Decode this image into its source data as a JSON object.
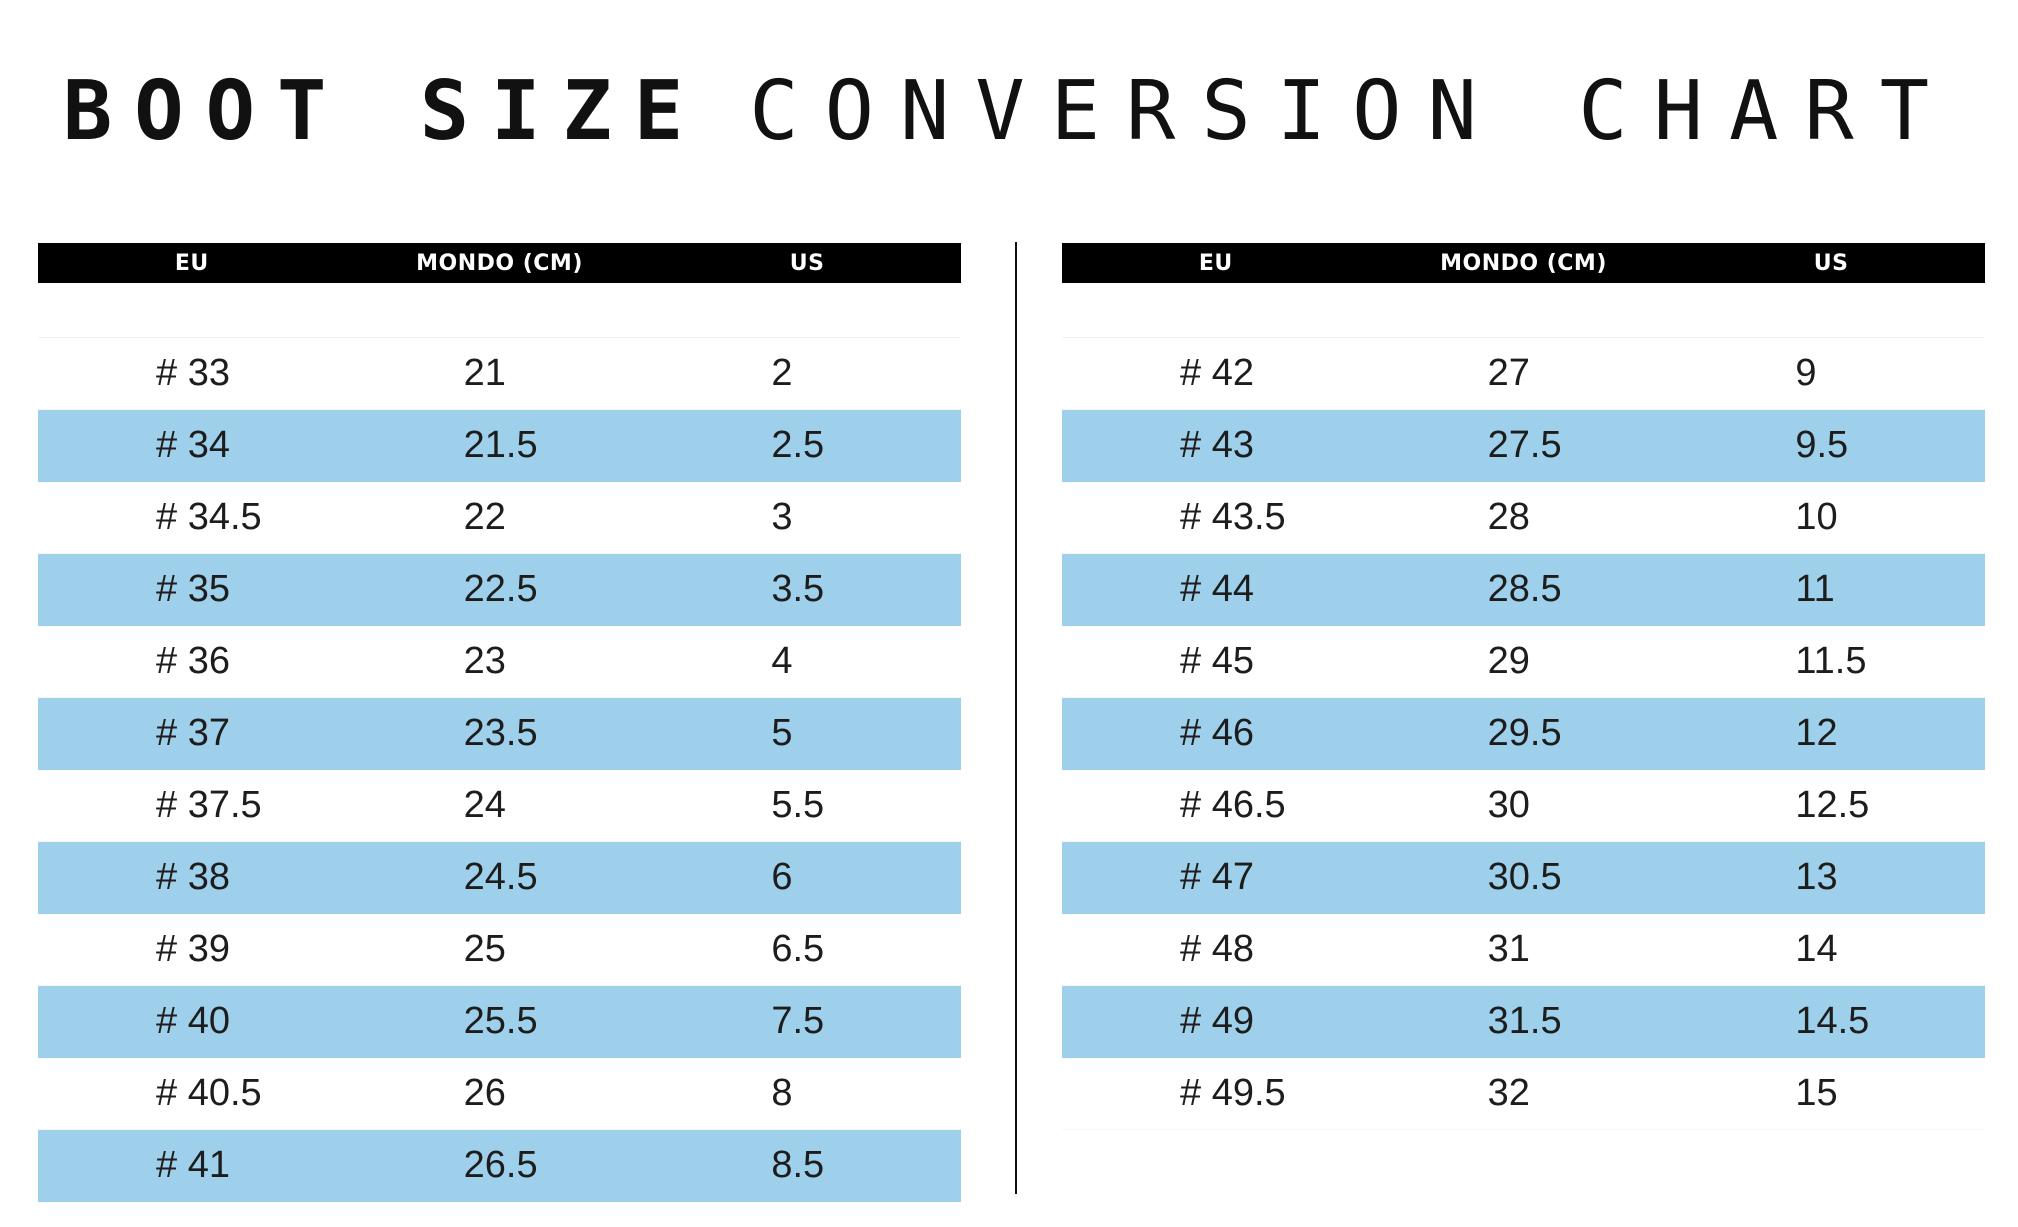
{
  "title": {
    "bold": "BOOT SIZE",
    "light": "CONVERSION CHART"
  },
  "columns": [
    "EU",
    "MONDO (CM)",
    "US"
  ],
  "left_rows": [
    [
      "# 33",
      "21",
      "2"
    ],
    [
      "# 34",
      "21.5",
      "2.5"
    ],
    [
      "# 34.5",
      "22",
      "3"
    ],
    [
      "# 35",
      "22.5",
      "3.5"
    ],
    [
      "# 36",
      "23",
      "4"
    ],
    [
      "# 37",
      "23.5",
      "5"
    ],
    [
      "# 37.5",
      "24",
      "5.5"
    ],
    [
      "# 38",
      "24.5",
      "6"
    ],
    [
      "# 39",
      "25",
      "6.5"
    ],
    [
      "# 40",
      "25.5",
      "7.5"
    ],
    [
      "# 40.5",
      "26",
      "8"
    ],
    [
      "# 41",
      "26.5",
      "8.5"
    ]
  ],
  "right_rows": [
    [
      "# 42",
      "27",
      "9"
    ],
    [
      "# 43",
      "27.5",
      "9.5"
    ],
    [
      "# 43.5",
      "28",
      "10"
    ],
    [
      "# 44",
      "28.5",
      "11"
    ],
    [
      "# 45",
      "29",
      "11.5"
    ],
    [
      "# 46",
      "29.5",
      "12"
    ],
    [
      "# 46.5",
      "30",
      "12.5"
    ],
    [
      "# 47",
      "30.5",
      "13"
    ],
    [
      "# 48",
      "31",
      "14"
    ],
    [
      "# 49",
      "31.5",
      "14.5"
    ],
    [
      "# 49.5",
      "32",
      "15"
    ]
  ],
  "colors": {
    "header_bg": "#000000",
    "header_text": "#ffffff",
    "stripe": "#9ed0ec"
  }
}
